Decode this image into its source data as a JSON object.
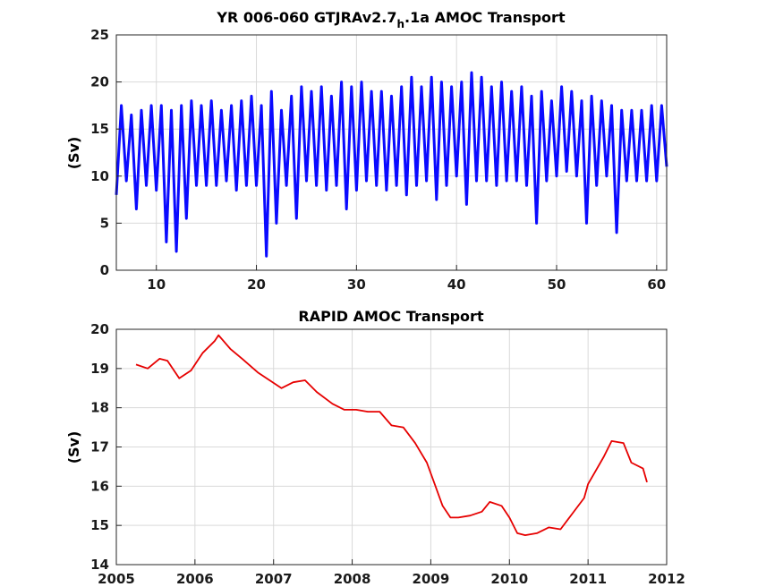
{
  "chart_data": [
    {
      "type": "line",
      "title_main": "YR 006-060 GTJRAv2.7",
      "title_sub": "h",
      "title_rest": ".1a AMOC Transport",
      "xlabel": "",
      "ylabel": "(Sv)",
      "xlim": [
        6,
        61
      ],
      "ylim": [
        0,
        25
      ],
      "xticks": [
        10,
        20,
        30,
        40,
        50,
        60
      ],
      "yticks": [
        0,
        5,
        10,
        15,
        20,
        25
      ],
      "grid": true,
      "color": "#0a0aff",
      "series": [
        {
          "x": [
            6.0,
            6.5,
            7.0,
            7.5,
            8.0,
            8.5,
            9.0,
            9.5,
            10.0,
            10.5,
            11.0,
            11.5,
            12.0,
            12.5,
            13.0,
            13.5,
            14.0,
            14.5,
            15.0,
            15.5,
            16.0,
            16.5,
            17.0,
            17.5,
            18.0,
            18.5,
            19.0,
            19.5,
            20.0,
            20.5,
            21.0,
            21.5,
            22.0,
            22.5,
            23.0,
            23.5,
            24.0,
            24.5,
            25.0,
            25.5,
            26.0,
            26.5,
            27.0,
            27.5,
            28.0,
            28.5,
            29.0,
            29.5,
            30.0,
            30.5,
            31.0,
            31.5,
            32.0,
            32.5,
            33.0,
            33.5,
            34.0,
            34.5,
            35.0,
            35.5,
            36.0,
            36.5,
            37.0,
            37.5,
            38.0,
            38.5,
            39.0,
            39.5,
            40.0,
            40.5,
            41.0,
            41.5,
            42.0,
            42.5,
            43.0,
            43.5,
            44.0,
            44.5,
            45.0,
            45.5,
            46.0,
            46.5,
            47.0,
            47.5,
            48.0,
            48.5,
            49.0,
            49.5,
            50.0,
            50.5,
            51.0,
            51.5,
            52.0,
            52.5,
            53.0,
            53.5,
            54.0,
            54.5,
            55.0,
            55.5,
            56.0,
            56.5,
            57.0,
            57.5,
            58.0,
            58.5,
            59.0,
            59.5,
            60.0,
            60.5,
            61.0
          ],
          "y": [
            8.0,
            17.5,
            9.5,
            16.5,
            6.5,
            17.0,
            9.0,
            17.5,
            8.5,
            17.5,
            3.0,
            17.0,
            2.0,
            17.5,
            5.5,
            18.0,
            9.0,
            17.5,
            9.0,
            18.0,
            9.0,
            17.0,
            9.5,
            17.5,
            8.5,
            18.0,
            9.0,
            18.5,
            9.0,
            17.5,
            1.5,
            19.0,
            5.0,
            17.0,
            9.0,
            18.5,
            5.5,
            19.5,
            9.5,
            19.0,
            9.0,
            19.5,
            8.5,
            18.5,
            9.0,
            20.0,
            6.5,
            19.5,
            8.5,
            20.0,
            9.5,
            19.0,
            9.0,
            19.0,
            8.5,
            18.5,
            9.0,
            19.5,
            8.0,
            20.5,
            9.0,
            19.5,
            9.5,
            20.5,
            7.5,
            20.0,
            9.0,
            19.5,
            10.0,
            20.0,
            7.0,
            21.0,
            9.5,
            20.5,
            9.5,
            19.5,
            9.0,
            20.0,
            9.5,
            19.0,
            9.5,
            19.5,
            9.0,
            18.5,
            5.0,
            19.0,
            9.5,
            18.0,
            10.0,
            19.5,
            10.5,
            19.0,
            10.0,
            18.0,
            5.0,
            18.5,
            9.0,
            18.0,
            10.0,
            17.5,
            4.0,
            17.0,
            9.5,
            17.0,
            9.5,
            17.0,
            9.5,
            17.5,
            9.5,
            17.5,
            11.0
          ]
        }
      ]
    },
    {
      "type": "line",
      "title": "RAPID AMOC Transport",
      "xlabel": "",
      "ylabel": "(Sv)",
      "xlim": [
        2005,
        2012
      ],
      "ylim": [
        14,
        20
      ],
      "xticks": [
        2005,
        2006,
        2007,
        2008,
        2009,
        2010,
        2011,
        2012
      ],
      "yticks": [
        14,
        15,
        16,
        17,
        18,
        19,
        20
      ],
      "grid": true,
      "color": "#e60000",
      "series": [
        {
          "x": [
            2005.25,
            2005.4,
            2005.55,
            2005.65,
            2005.8,
            2005.95,
            2006.1,
            2006.25,
            2006.3,
            2006.45,
            2006.6,
            2006.8,
            2006.95,
            2007.1,
            2007.25,
            2007.4,
            2007.55,
            2007.75,
            2007.9,
            2008.05,
            2008.2,
            2008.35,
            2008.5,
            2008.65,
            2008.8,
            2008.95,
            2009.05,
            2009.15,
            2009.25,
            2009.35,
            2009.5,
            2009.65,
            2009.75,
            2009.9,
            2010.0,
            2010.1,
            2010.2,
            2010.35,
            2010.5,
            2010.65,
            2010.8,
            2010.95,
            2011.0,
            2011.1,
            2011.2,
            2011.3,
            2011.45,
            2011.55,
            2011.7,
            2011.75
          ],
          "y": [
            19.1,
            19.0,
            19.25,
            19.2,
            18.75,
            18.95,
            19.4,
            19.7,
            19.85,
            19.5,
            19.25,
            18.9,
            18.7,
            18.5,
            18.65,
            18.7,
            18.4,
            18.1,
            17.95,
            17.95,
            17.9,
            17.9,
            17.55,
            17.5,
            17.1,
            16.6,
            16.05,
            15.5,
            15.2,
            15.2,
            15.25,
            15.35,
            15.6,
            15.5,
            15.2,
            14.8,
            14.75,
            14.8,
            14.95,
            14.9,
            15.3,
            15.7,
            16.05,
            16.4,
            16.75,
            17.15,
            17.1,
            16.6,
            16.45,
            16.1
          ]
        }
      ]
    }
  ]
}
